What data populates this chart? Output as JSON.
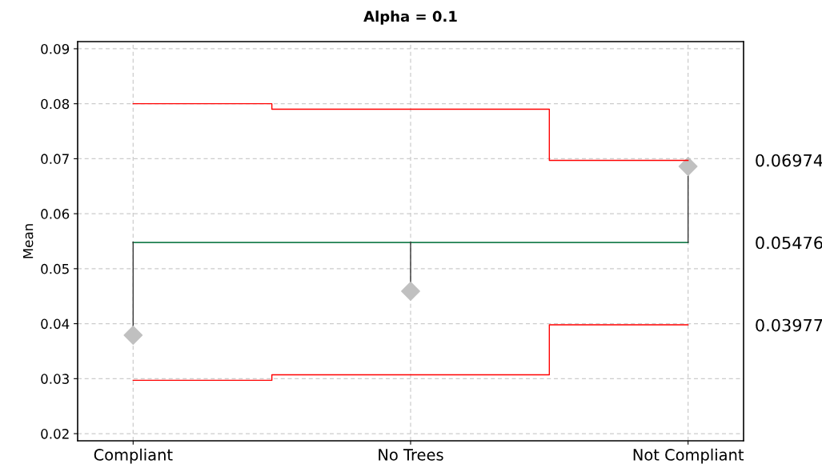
{
  "chart_data": {
    "type": "step",
    "title": "Alpha = 0.1",
    "ylabel": "Mean",
    "categories": [
      "Compliant",
      "No Trees",
      "Not Compliant"
    ],
    "series": [
      {
        "color": "#ff0000",
        "values": [
          0.08,
          0.079,
          0.0697
        ]
      },
      {
        "color": "#ff0000",
        "values": [
          0.0297,
          0.0307,
          0.0398
        ]
      },
      {
        "type": "scatter",
        "color": "#c0c0c0",
        "marker": "diamond",
        "values": [
          0.0379,
          0.0459,
          0.0686
        ],
        "errors": [
          [
            0.0379,
            0.0548
          ],
          [
            0.0459,
            0.0548
          ],
          [
            0.0548,
            0.0686
          ]
        ]
      }
    ],
    "ref_lines": [
      {
        "axis": "y",
        "value": 0.05476,
        "color": "#1e8050"
      }
    ],
    "ylim": [
      0.0187,
      0.0913
    ],
    "yticks": [
      0.02,
      0.03,
      0.04,
      0.05,
      0.06,
      0.07,
      0.08,
      0.09
    ],
    "y2lim": [
      0.0187,
      0.0913
    ],
    "y2ticks": [
      0.06974,
      0.05476,
      0.03977
    ],
    "grid": true,
    "legend": false
  }
}
